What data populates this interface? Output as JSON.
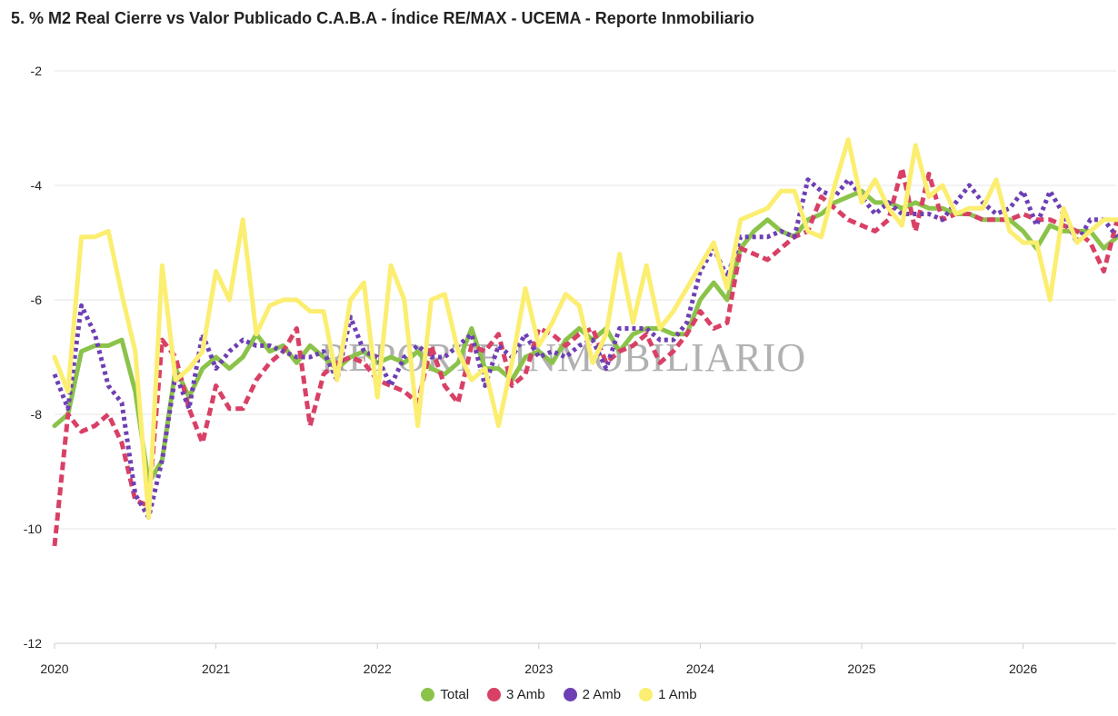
{
  "title": "5. % M2 Real Cierre vs Valor Publicado C.A.B.A - Índice RE/MAX - UCEMA - Reporte Inmobiliario",
  "watermark": "REPORTE INMOBILIARIO",
  "chart_data": {
    "type": "line",
    "x_start": "2020-01",
    "x_end": "2026-06",
    "x_ticks": [
      "2020",
      "2021",
      "2022",
      "2023",
      "2024",
      "2025",
      "2026"
    ],
    "y_ticks": [
      "-2",
      "-4",
      "-6",
      "-8",
      "-10",
      "-12"
    ],
    "ylim": [
      -12,
      -2
    ],
    "grid": true,
    "legend_position": "bottom",
    "series": [
      {
        "name": "Total",
        "color": "#8bc34a",
        "style": "solid",
        "values": [
          -8.2,
          -8,
          -6.9,
          -6.8,
          -6.8,
          -6.7,
          -7.6,
          -9.2,
          -8.8,
          -7.2,
          -7.7,
          -7.2,
          -7,
          -7.2,
          -7,
          -6.6,
          -6.9,
          -6.8,
          -7.1,
          -6.8,
          -7,
          -7.2,
          -7,
          -6.9,
          -7.1,
          -7,
          -7.1,
          -6.9,
          -7.2,
          -7.3,
          -7.1,
          -6.5,
          -7.2,
          -7.2,
          -7.4,
          -7,
          -6.9,
          -7.1,
          -6.7,
          -6.5,
          -6.7,
          -6.5,
          -6.9,
          -6.6,
          -6.5,
          -6.5,
          -6.6,
          -6.6,
          -6,
          -5.7,
          -6,
          -5.1,
          -4.8,
          -4.6,
          -4.8,
          -4.9,
          -4.6,
          -4.5,
          -4.3,
          -4.2,
          -4.1,
          -4.3,
          -4.3,
          -4.4,
          -4.3,
          -4.4,
          -4.4,
          -4.5,
          -4.5,
          -4.6,
          -4.6,
          -4.6,
          -4.8,
          -5.1,
          -4.7,
          -4.8,
          -4.8,
          -4.8,
          -5.1,
          -4.9
        ]
      },
      {
        "name": "3 Amb",
        "color": "#d94066",
        "style": "dashed",
        "values": [
          -10.3,
          -8,
          -8.3,
          -8.2,
          -8,
          -8.5,
          -9.5,
          -9.6,
          -6.7,
          -7,
          -7.9,
          -8.5,
          -7.5,
          -7.9,
          -7.9,
          -7.4,
          -7.1,
          -6.9,
          -6.5,
          -8.2,
          -7.3,
          -7.1,
          -7,
          -7.1,
          -7.4,
          -7.5,
          -7.6,
          -7.8,
          -6.8,
          -7.5,
          -7.8,
          -6.8,
          -6.9,
          -6.6,
          -7.5,
          -7.3,
          -6.5,
          -6.6,
          -6.8,
          -6.6,
          -6.5,
          -7.1,
          -6.9,
          -6.8,
          -6.6,
          -7.1,
          -6.9,
          -6.6,
          -6.2,
          -6.5,
          -6.4,
          -5.1,
          -5.2,
          -5.3,
          -5.1,
          -4.9,
          -4.8,
          -4.2,
          -4.4,
          -4.6,
          -4.7,
          -4.8,
          -4.6,
          -3.7,
          -4.8,
          -3.8,
          -4.6,
          -4.5,
          -4.5,
          -4.6,
          -4.6,
          -4.6,
          -4.5,
          -4.6,
          -4.6,
          -4.7,
          -4.8,
          -5,
          -5.5,
          -4.6
        ]
      },
      {
        "name": "2 Amb",
        "color": "#6e3fb4",
        "style": "dotted",
        "values": [
          -7.3,
          -7.9,
          -6.1,
          -6.6,
          -7.5,
          -7.8,
          -9.4,
          -9.8,
          -8.8,
          -7.3,
          -7.9,
          -6.6,
          -7.2,
          -6.9,
          -6.7,
          -6.8,
          -6.8,
          -6.9,
          -7,
          -7,
          -6.9,
          -7.4,
          -6.3,
          -6.9,
          -7,
          -7.5,
          -7,
          -6.8,
          -7,
          -7,
          -6.8,
          -6.6,
          -7.5,
          -6.8,
          -7,
          -6.6,
          -7,
          -6.9,
          -7,
          -6.8,
          -6.7,
          -7.2,
          -6.5,
          -6.5,
          -6.5,
          -6.7,
          -6.7,
          -6.4,
          -5.5,
          -5.1,
          -5.6,
          -4.9,
          -4.9,
          -4.9,
          -4.8,
          -4.9,
          -3.9,
          -4.1,
          -4.2,
          -3.9,
          -4.2,
          -4.5,
          -4.3,
          -4.5,
          -4.5,
          -4.5,
          -4.6,
          -4.3,
          -4,
          -4.3,
          -4.5,
          -4.4,
          -4.1,
          -4.7,
          -4.1,
          -4.5,
          -5,
          -4.6,
          -4.6,
          -4.9
        ]
      },
      {
        "name": "1 Amb",
        "color": "#fbee70",
        "style": "solid",
        "values": [
          -7,
          -7.6,
          -4.9,
          -4.9,
          -4.8,
          -5.9,
          -6.9,
          -9.8,
          -5.4,
          -7.4,
          -7.2,
          -6.9,
          -5.5,
          -6,
          -4.6,
          -6.6,
          -6.1,
          -6,
          -6,
          -6.2,
          -6.2,
          -7.4,
          -6,
          -5.7,
          -7.7,
          -5.4,
          -6,
          -8.2,
          -6,
          -5.9,
          -6.9,
          -7.4,
          -7.2,
          -8.2,
          -7.1,
          -5.8,
          -6.8,
          -6.4,
          -5.9,
          -6.1,
          -7.1,
          -6.6,
          -5.2,
          -6.4,
          -5.4,
          -6.5,
          -6.2,
          -5.8,
          -5.4,
          -5,
          -5.8,
          -4.6,
          -4.5,
          -4.4,
          -4.1,
          -4.1,
          -4.8,
          -4.9,
          -4,
          -3.2,
          -4.3,
          -3.9,
          -4.4,
          -4.7,
          -3.3,
          -4.2,
          -4,
          -4.5,
          -4.4,
          -4.4,
          -3.9,
          -4.8,
          -5,
          -5,
          -6,
          -4.4,
          -5,
          -4.8,
          -4.6,
          -4.6
        ]
      }
    ]
  }
}
